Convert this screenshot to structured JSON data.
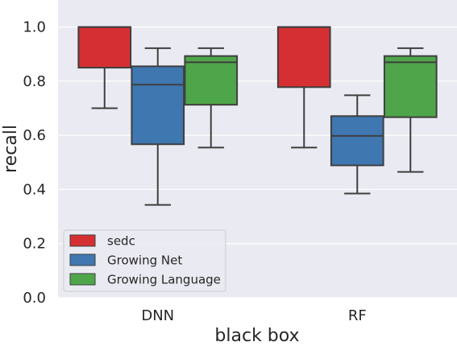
{
  "chart_data": {
    "type": "box",
    "xlabel": "black box",
    "ylabel": "recall",
    "ylim": [
      0.0,
      1.1
    ],
    "yticks": [
      "0.0",
      "0.2",
      "0.4",
      "0.6",
      "0.8",
      "1.0"
    ],
    "categories": [
      "DNN",
      "RF"
    ],
    "grid": true,
    "legend_position": "lower-left",
    "colors": {
      "background": "#eaeaf2",
      "grid": "#ffffff",
      "box_edge": "#3f3f3f",
      "legend_frame": "#cccccc"
    },
    "series": [
      {
        "name": "sedc",
        "color": "#d62f33",
        "boxes": [
          {
            "category": "DNN",
            "whislo": 0.7,
            "q1": 0.85,
            "med": 1.0,
            "q3": 1.0,
            "whishi": 1.0
          },
          {
            "category": "RF",
            "whislo": 0.555,
            "q1": 0.778,
            "med": 1.0,
            "q3": 1.0,
            "whishi": 1.0
          }
        ]
      },
      {
        "name": "Growing Net",
        "color": "#3f77b0",
        "boxes": [
          {
            "category": "DNN",
            "whislo": 0.343,
            "q1": 0.567,
            "med": 0.787,
            "q3": 0.855,
            "whishi": 0.922
          },
          {
            "category": "RF",
            "whislo": 0.385,
            "q1": 0.489,
            "med": 0.598,
            "q3": 0.671,
            "whishi": 0.748
          }
        ]
      },
      {
        "name": "Growing Language",
        "color": "#4fa64a",
        "boxes": [
          {
            "category": "DNN",
            "whislo": 0.555,
            "q1": 0.713,
            "med": 0.87,
            "q3": 0.893,
            "whishi": 0.922
          },
          {
            "category": "RF",
            "whislo": 0.465,
            "q1": 0.667,
            "med": 0.87,
            "q3": 0.893,
            "whishi": 0.922
          }
        ]
      }
    ]
  }
}
